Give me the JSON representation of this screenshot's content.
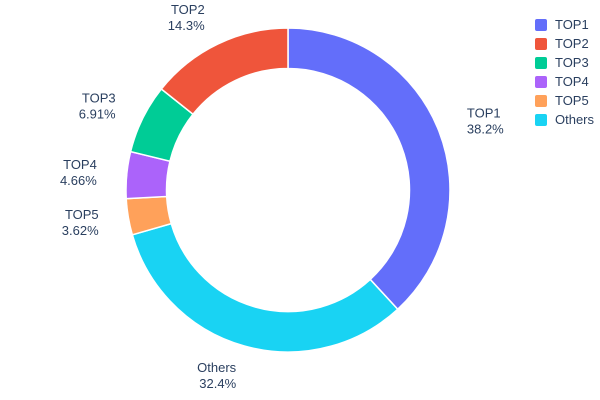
{
  "chart_data": {
    "type": "pie",
    "subtype": "donut",
    "donut_hole": 0.75,
    "title": "",
    "labels": [
      "TOP1",
      "TOP2",
      "TOP3",
      "TOP4",
      "TOP5",
      "Others"
    ],
    "values": [
      38.2,
      14.3,
      6.91,
      4.66,
      3.62,
      32.4
    ],
    "percent_labels": [
      "38.2%",
      "14.3%",
      "6.91%",
      "4.66%",
      "3.62%",
      "32.4%"
    ],
    "colors": [
      "#636efa",
      "#ef553b",
      "#00cc96",
      "#ab63fa",
      "#ffa15a",
      "#19d3f3"
    ],
    "legend": {
      "position": "right",
      "entries": [
        "TOP1",
        "TOP2",
        "TOP3",
        "TOP4",
        "TOP5",
        "Others"
      ]
    },
    "label_position": "outside",
    "text_color": "#2a3f5f",
    "background": "#ffffff",
    "slice_border_color": "#ffffff"
  }
}
